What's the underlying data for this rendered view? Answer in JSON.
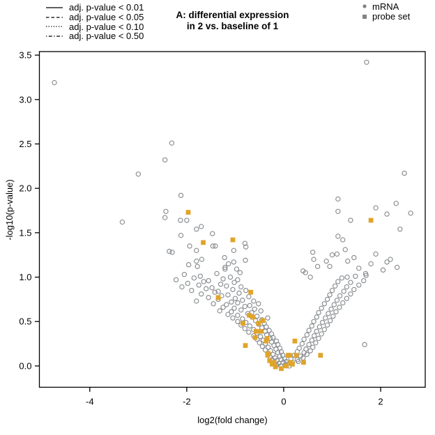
{
  "title": {
    "line1": "A: differential expression",
    "line2": "in 2 vs. baseline of 1"
  },
  "line_legend": [
    {
      "dash": "",
      "label": "adj. p-value < 0.01"
    },
    {
      "dash": "4.5,3",
      "label": "adj. p-value < 0.05"
    },
    {
      "dash": "1.3,2.3",
      "label": "adj. p-value < 0.10"
    },
    {
      "dash": "1.3,2.5,5,2.5",
      "label": "adj. p-value < 0.50"
    }
  ],
  "point_legend": [
    {
      "marker": "circle",
      "label": "mRNA"
    },
    {
      "marker": "square",
      "label": "probe set"
    }
  ],
  "colors": {
    "mrna": "#888c8f",
    "probe_set": "#e0a42a",
    "legend_marker": "#7f8487",
    "axis": "#000000"
  },
  "chart_data": {
    "type": "scatter",
    "title": "A: differential expression in 2 vs. baseline of 1",
    "xlabel": "log2(fold change)",
    "ylabel": "-log10(p-value)",
    "xlim": [
      -5.04,
      2.92
    ],
    "ylim": [
      -0.24,
      3.54
    ],
    "xticks": [
      -4,
      -2,
      0,
      2
    ],
    "xtick_labels": [
      "-4",
      "-2",
      "0",
      "2"
    ],
    "yticks": [
      0,
      0.5,
      1,
      1.5,
      2,
      2.5,
      3,
      3.5
    ],
    "ytick_labels": [
      "0.0",
      "0.5",
      "1.0",
      "1.5",
      "2.0",
      "2.5",
      "3.0",
      "3.5"
    ],
    "grid": false,
    "legend_position": "top",
    "series": [
      {
        "name": "mRNA",
        "marker": "open-circle",
        "color": "#888c8f",
        "points": [
          [
            -4.73,
            3.19
          ],
          [
            1.71,
            3.42
          ],
          [
            -2.31,
            2.51
          ],
          [
            -2.45,
            2.32
          ],
          [
            -3.0,
            2.16
          ],
          [
            2.49,
            2.17
          ],
          [
            -3.33,
            1.62
          ],
          [
            -2.43,
            1.74
          ],
          [
            -2.45,
            1.67
          ],
          [
            -2.12,
            1.92
          ],
          [
            -2.13,
            1.64
          ],
          [
            -2.0,
            1.64
          ],
          [
            -1.8,
            1.54
          ],
          [
            -1.7,
            1.57
          ],
          [
            -2.12,
            1.47
          ],
          [
            -1.47,
            1.49
          ],
          [
            -1.94,
            1.35
          ],
          [
            -1.46,
            1.35
          ],
          [
            -1.41,
            1.35
          ],
          [
            -1.03,
            1.3
          ],
          [
            -0.8,
            1.38
          ],
          [
            -0.78,
            1.34
          ],
          [
            -1.8,
            1.3
          ],
          [
            -2.3,
            1.28
          ],
          [
            -2.36,
            1.29
          ],
          [
            -1.8,
            1.18
          ],
          [
            -1.69,
            1.2
          ],
          [
            -1.96,
            1.14
          ],
          [
            -1.78,
            1.12
          ],
          [
            -1.22,
            1.22
          ],
          [
            -1.14,
            1.15
          ],
          [
            -1.21,
            1.11
          ],
          [
            -1.21,
            1.09
          ],
          [
            -1.03,
            1.17
          ],
          [
            -0.79,
            1.19
          ],
          [
            -0.97,
            1.09
          ],
          [
            -0.9,
            1.05
          ],
          [
            1.12,
            1.88
          ],
          [
            1.12,
            1.74
          ],
          [
            1.9,
            1.78
          ],
          [
            2.32,
            1.83
          ],
          [
            2.13,
            1.71
          ],
          [
            2.62,
            1.72
          ],
          [
            1.38,
            1.64
          ],
          [
            2.4,
            1.54
          ],
          [
            1.12,
            1.46
          ],
          [
            1.22,
            1.42
          ],
          [
            1.27,
            1.31
          ],
          [
            1.1,
            1.26
          ],
          [
            0.62,
            1.2
          ],
          [
            0.95,
            1.12
          ],
          [
            0.4,
            1.07
          ],
          [
            2.13,
            1.17
          ],
          [
            2.34,
            1.11
          ],
          [
            1.69,
            1.04
          ],
          [
            1.67,
            0.24
          ],
          [
            1.7,
            1.02
          ],
          [
            1.31,
            1.0
          ],
          [
            -2.05,
            1.03
          ],
          [
            -1.72,
            1.01
          ],
          [
            -1.38,
            1.04
          ],
          [
            -1.1,
            1.0
          ],
          [
            -2.22,
            0.97
          ],
          [
            -1.85,
            0.99
          ],
          [
            -1.55,
            0.96
          ],
          [
            -1.25,
            0.98
          ],
          [
            -0.95,
            0.97
          ],
          [
            -1.98,
            0.93
          ],
          [
            -1.65,
            0.95
          ],
          [
            -1.3,
            0.92
          ],
          [
            -1.02,
            0.94
          ],
          [
            -2.1,
            0.89
          ],
          [
            -1.75,
            0.91
          ],
          [
            -1.48,
            0.88
          ],
          [
            -1.18,
            0.9
          ],
          [
            -0.88,
            0.89
          ],
          [
            -1.9,
            0.85
          ],
          [
            -1.6,
            0.87
          ],
          [
            -1.35,
            0.84
          ],
          [
            -1.05,
            0.86
          ],
          [
            -0.78,
            0.85
          ],
          [
            -1.7,
            0.81
          ],
          [
            -1.42,
            0.83
          ],
          [
            -1.15,
            0.8
          ],
          [
            -0.92,
            0.82
          ],
          [
            -1.55,
            0.77
          ],
          [
            -1.28,
            0.79
          ],
          [
            -1.0,
            0.76
          ],
          [
            -0.72,
            0.78
          ],
          [
            -1.8,
            0.73
          ],
          [
            -1.35,
            0.75
          ],
          [
            -1.08,
            0.72
          ],
          [
            -0.85,
            0.74
          ],
          [
            -0.62,
            0.73
          ],
          [
            -1.45,
            0.7
          ],
          [
            -1.18,
            0.69
          ],
          [
            -0.95,
            0.71
          ],
          [
            -0.7,
            0.68
          ],
          [
            -0.52,
            0.7
          ],
          [
            -1.25,
            0.66
          ],
          [
            -1.02,
            0.65
          ],
          [
            -0.8,
            0.67
          ],
          [
            -0.6,
            0.64
          ],
          [
            -1.32,
            0.62
          ],
          [
            -1.08,
            0.61
          ],
          [
            -0.88,
            0.63
          ],
          [
            -0.66,
            0.6
          ],
          [
            -0.47,
            0.62
          ],
          [
            -1.15,
            0.58
          ],
          [
            -0.95,
            0.57
          ],
          [
            -0.74,
            0.59
          ],
          [
            -0.55,
            0.56
          ],
          [
            -1.05,
            0.54
          ],
          [
            -0.85,
            0.53
          ],
          [
            -0.65,
            0.55
          ],
          [
            -0.45,
            0.52
          ],
          [
            -0.33,
            0.54
          ],
          [
            -0.95,
            0.5
          ],
          [
            -0.78,
            0.49
          ],
          [
            -0.58,
            0.51
          ],
          [
            -0.4,
            0.48
          ],
          [
            -0.88,
            0.46
          ],
          [
            -0.7,
            0.45
          ],
          [
            -0.52,
            0.47
          ],
          [
            -0.36,
            0.44
          ],
          [
            -0.8,
            0.42
          ],
          [
            -0.62,
            0.41
          ],
          [
            -0.45,
            0.43
          ],
          [
            -0.3,
            0.4
          ],
          [
            -0.72,
            0.38
          ],
          [
            -0.55,
            0.37
          ],
          [
            -0.38,
            0.39
          ],
          [
            -0.25,
            0.36
          ],
          [
            -0.62,
            0.34
          ],
          [
            -0.48,
            0.33
          ],
          [
            -0.35,
            0.35
          ],
          [
            -0.22,
            0.32
          ],
          [
            -0.55,
            0.3
          ],
          [
            -0.42,
            0.29
          ],
          [
            -0.28,
            0.31
          ],
          [
            -0.15,
            0.28
          ],
          [
            -0.5,
            0.26
          ],
          [
            -0.38,
            0.25
          ],
          [
            -0.25,
            0.27
          ],
          [
            -0.12,
            0.24
          ],
          [
            -0.44,
            0.22
          ],
          [
            -0.32,
            0.21
          ],
          [
            -0.2,
            0.23
          ],
          [
            -0.08,
            0.2
          ],
          [
            -0.38,
            0.18
          ],
          [
            -0.27,
            0.17
          ],
          [
            -0.16,
            0.19
          ],
          [
            -0.05,
            0.16
          ],
          [
            -0.33,
            0.14
          ],
          [
            -0.22,
            0.13
          ],
          [
            -0.12,
            0.15
          ],
          [
            -0.02,
            0.12
          ],
          [
            -0.28,
            0.1
          ],
          [
            -0.18,
            0.09
          ],
          [
            -0.08,
            0.11
          ],
          [
            0.02,
            0.08
          ],
          [
            -0.24,
            0.07
          ],
          [
            -0.14,
            0.06
          ],
          [
            -0.05,
            0.07
          ],
          [
            0.05,
            0.05
          ],
          [
            -0.2,
            0.04
          ],
          [
            -0.1,
            0.03
          ],
          [
            -0.01,
            0.04
          ],
          [
            0.08,
            0.02
          ],
          [
            -0.15,
            0.01
          ],
          [
            -0.06,
            0.0
          ],
          [
            0.03,
            0.01
          ],
          [
            0.12,
            0.0
          ],
          [
            0.18,
            0.04
          ],
          [
            0.3,
            0.05
          ],
          [
            0.15,
            0.08
          ],
          [
            0.28,
            0.07
          ],
          [
            0.4,
            0.09
          ],
          [
            0.22,
            0.12
          ],
          [
            0.35,
            0.11
          ],
          [
            0.48,
            0.13
          ],
          [
            0.28,
            0.16
          ],
          [
            0.42,
            0.15
          ],
          [
            0.55,
            0.17
          ],
          [
            0.32,
            0.2
          ],
          [
            0.46,
            0.19
          ],
          [
            0.6,
            0.21
          ],
          [
            0.38,
            0.25
          ],
          [
            0.52,
            0.24
          ],
          [
            0.66,
            0.26
          ],
          [
            0.42,
            0.3
          ],
          [
            0.58,
            0.29
          ],
          [
            0.72,
            0.31
          ],
          [
            0.48,
            0.35
          ],
          [
            0.63,
            0.34
          ],
          [
            0.78,
            0.36
          ],
          [
            0.52,
            0.4
          ],
          [
            0.68,
            0.39
          ],
          [
            0.84,
            0.41
          ],
          [
            0.58,
            0.45
          ],
          [
            0.74,
            0.44
          ],
          [
            0.9,
            0.46
          ],
          [
            0.62,
            0.5
          ],
          [
            0.8,
            0.49
          ],
          [
            0.96,
            0.51
          ],
          [
            0.68,
            0.55
          ],
          [
            0.86,
            0.54
          ],
          [
            1.02,
            0.56
          ],
          [
            0.72,
            0.6
          ],
          [
            0.92,
            0.59
          ],
          [
            1.08,
            0.61
          ],
          [
            0.78,
            0.65
          ],
          [
            0.98,
            0.64
          ],
          [
            1.15,
            0.66
          ],
          [
            0.84,
            0.7
          ],
          [
            1.04,
            0.69
          ],
          [
            1.22,
            0.71
          ],
          [
            0.9,
            0.75
          ],
          [
            1.1,
            0.74
          ],
          [
            1.3,
            0.76
          ],
          [
            0.95,
            0.8
          ],
          [
            1.16,
            0.79
          ],
          [
            1.38,
            0.81
          ],
          [
            1.0,
            0.85
          ],
          [
            1.24,
            0.84
          ],
          [
            1.45,
            0.86
          ],
          [
            1.06,
            0.9
          ],
          [
            1.3,
            0.89
          ],
          [
            1.55,
            0.91
          ],
          [
            1.12,
            0.95
          ],
          [
            1.38,
            0.94
          ],
          [
            1.65,
            0.96
          ],
          [
            0.55,
            1.0
          ],
          [
            1.2,
            0.99
          ],
          [
            1.48,
            1.01
          ],
          [
            0.45,
            1.05
          ],
          [
            0.7,
            1.12
          ],
          [
            0.88,
            1.18
          ],
          [
            1.55,
            1.1
          ],
          [
            1.8,
            1.15
          ],
          [
            2.05,
            1.08
          ],
          [
            1.45,
            1.22
          ],
          [
            0.6,
            1.28
          ],
          [
            1.0,
            1.25
          ],
          [
            1.32,
            1.18
          ],
          [
            1.9,
            1.26
          ],
          [
            2.2,
            1.2
          ]
        ]
      },
      {
        "name": "probe set",
        "marker": "filled-square",
        "color": "#e0a42a",
        "points": [
          [
            -1.97,
            1.73
          ],
          [
            1.8,
            1.64
          ],
          [
            -1.66,
            1.39
          ],
          [
            -1.05,
            1.42
          ],
          [
            -0.68,
            0.83
          ],
          [
            -1.35,
            0.77
          ],
          [
            -0.71,
            0.57
          ],
          [
            -0.64,
            0.55
          ],
          [
            -0.84,
            0.48
          ],
          [
            -0.52,
            0.48
          ],
          [
            -0.43,
            0.51
          ],
          [
            -0.57,
            0.39
          ],
          [
            -0.47,
            0.39
          ],
          [
            -0.59,
            0.32
          ],
          [
            -0.34,
            0.31
          ],
          [
            -0.79,
            0.23
          ],
          [
            -0.36,
            0.28
          ],
          [
            0.23,
            0.28
          ],
          [
            -0.32,
            0.14
          ],
          [
            -0.33,
            0.12
          ],
          [
            0.12,
            0.12
          ],
          [
            0.09,
            0.12
          ],
          [
            0.26,
            0.12
          ],
          [
            -0.29,
            0.06
          ],
          [
            -0.2,
            0.04
          ],
          [
            -0.24,
            0.02
          ],
          [
            -0.17,
            -0.01
          ],
          [
            -0.05,
            -0.03
          ],
          [
            0.05,
            0.0
          ],
          [
            0.14,
            0.04
          ],
          [
            0.18,
            0.02
          ],
          [
            0.41,
            0.04
          ],
          [
            0.76,
            0.12
          ]
        ]
      }
    ]
  }
}
